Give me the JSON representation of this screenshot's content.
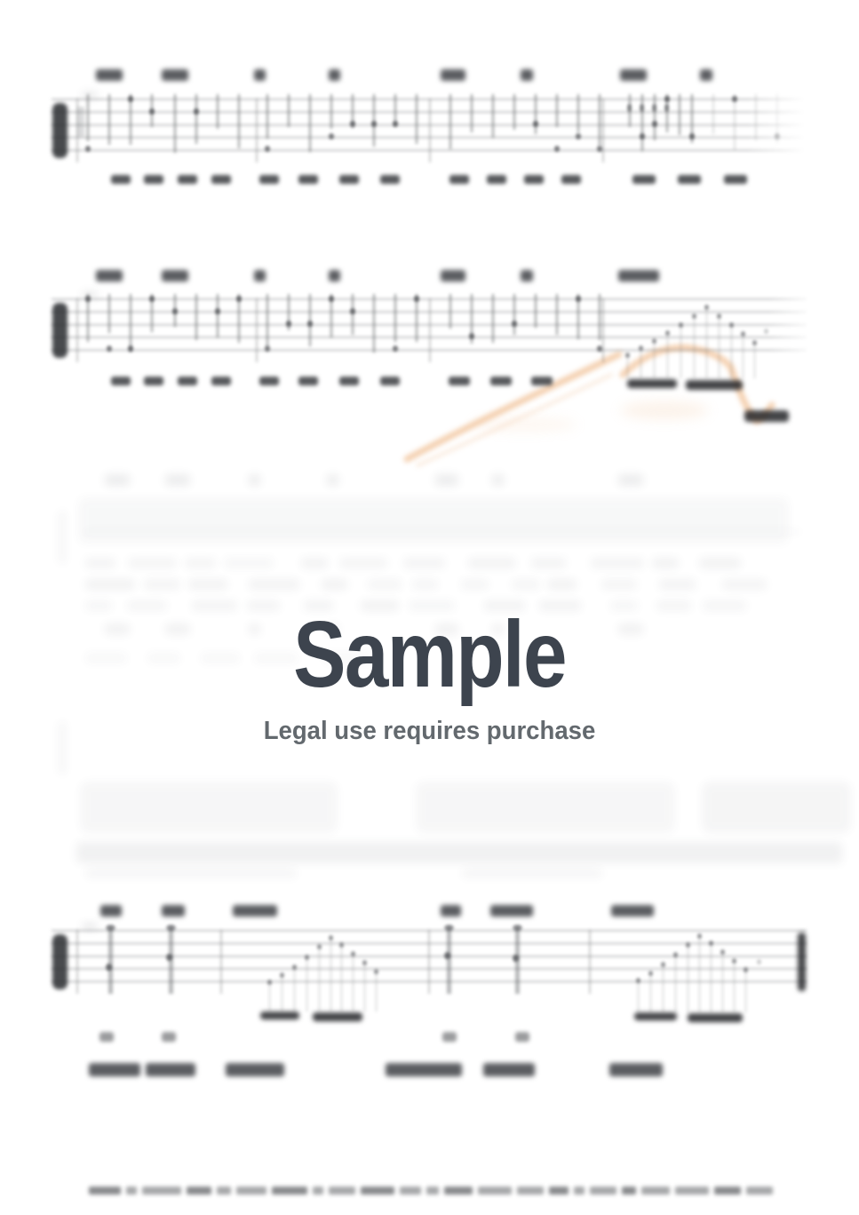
{
  "watermark": {
    "title": "Sample",
    "subtitle": "Legal use requires purchase"
  },
  "colors": {
    "watermark_title": "#3d444e",
    "watermark_subtitle": "#63696e",
    "annotation_highlight": "#f2c7a0",
    "page_background": "#ffffff",
    "notation_ink": "#2c2e32",
    "staff_line": "#d7d8da"
  }
}
